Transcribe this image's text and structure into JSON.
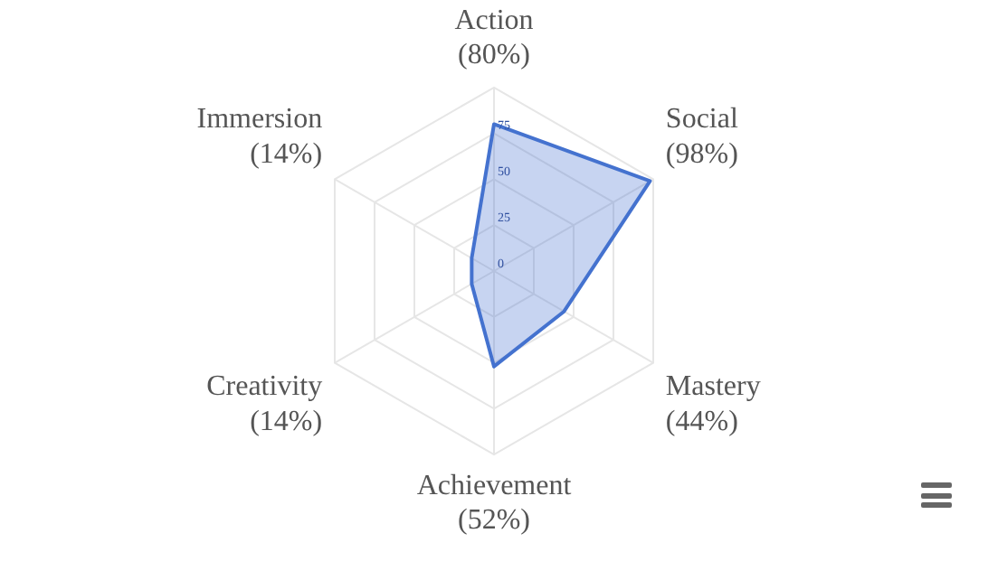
{
  "chart_data": {
    "type": "radar",
    "categories": [
      "Action (80%)",
      "Social (98%)",
      "Mastery (44%)",
      "Achievement (52%)",
      "Creativity (14%)",
      "Immersion (14%)"
    ],
    "series": [
      {
        "color": "#4472cf",
        "values": [
          80,
          98,
          44,
          52,
          14,
          14
        ]
      }
    ],
    "ylim": [
      0,
      100
    ],
    "yticks": [
      0,
      25,
      50,
      75
    ],
    "grid": true,
    "legend": false
  }
}
